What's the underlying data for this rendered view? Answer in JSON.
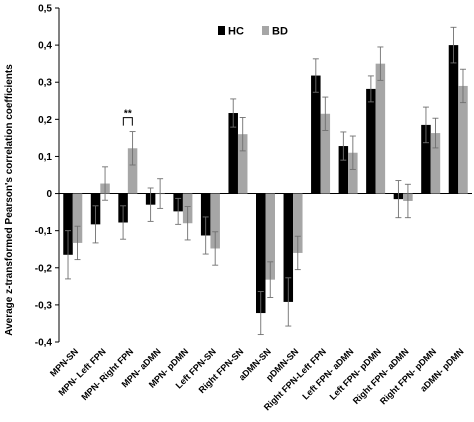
{
  "chart_data": {
    "type": "bar",
    "title": "",
    "xlabel": "",
    "ylabel": "Average z-transformed Pearson's correlation coefficients",
    "ylim": [
      -0.4,
      0.5
    ],
    "yticks": [
      "-0,4",
      "-0,3",
      "-0,2",
      "-0,1",
      "0",
      "0,1",
      "0,2",
      "0,3",
      "0,4",
      "0,5"
    ],
    "grid": false,
    "legend_position": "top-center",
    "categories": [
      "MPN-SN",
      "MPN- Left FPN",
      "MPN- Right FPN",
      "MPN- aDMN",
      "MPN- pDMN",
      "Left FPN-SN",
      "Right FPN-SN",
      "aDMN-SN",
      "pDMN-SN",
      "Right FPN-Left FPN",
      "Left FPN- aDMN",
      "Left FPN- pDMN",
      "Right FPN- aDMN",
      "Right FPN- pDMN",
      "aDMN- pDMN"
    ],
    "series": [
      {
        "name": "HC",
        "color": "#000000",
        "values": [
          -0.165,
          -0.083,
          -0.078,
          -0.03,
          -0.048,
          -0.113,
          0.217,
          -0.322,
          -0.292,
          0.318,
          0.128,
          0.282,
          -0.015,
          0.185,
          0.4
        ],
        "errors": [
          0.065,
          0.05,
          0.045,
          0.045,
          0.035,
          0.05,
          0.038,
          0.058,
          0.065,
          0.045,
          0.038,
          0.035,
          0.05,
          0.048,
          0.048
        ]
      },
      {
        "name": "BD",
        "color": "#a6a6a6",
        "values": [
          -0.133,
          0.027,
          0.122,
          0.0,
          -0.08,
          -0.148,
          0.16,
          -0.232,
          -0.16,
          0.215,
          0.11,
          0.35,
          -0.02,
          0.163,
          0.29
        ],
        "errors": [
          0.045,
          0.045,
          0.045,
          0.04,
          0.045,
          0.045,
          0.045,
          0.048,
          0.045,
          0.045,
          0.045,
          0.045,
          0.045,
          0.04,
          0.045
        ]
      }
    ],
    "annotations": [
      {
        "category": "MPN- Right FPN",
        "text": "**"
      }
    ]
  }
}
